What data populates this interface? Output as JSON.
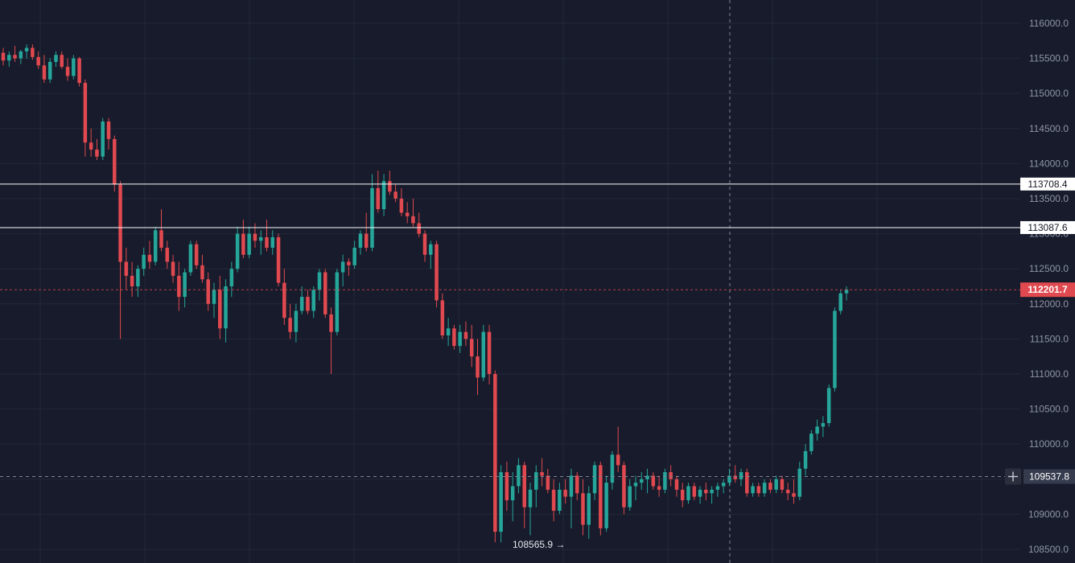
{
  "chart_data": {
    "type": "candlestick",
    "y_axis": {
      "min": 108450,
      "max": 116150,
      "ticks": [
        116000,
        115500,
        115000,
        114500,
        114000,
        113500,
        113000,
        112500,
        112000,
        111500,
        111000,
        110500,
        110000,
        109500,
        109000,
        108500
      ],
      "tick_labels": [
        "116000.0",
        "115500.0",
        "115000.0",
        "114500.0",
        "114000.0",
        "113500.0",
        "113000.0",
        "112500.0",
        "112000.0",
        "111500.0",
        "111000.0",
        "110500.0",
        "110000.0",
        "109500.0",
        "109000.0",
        "108500.0"
      ]
    },
    "horizontal_levels": [
      {
        "value": 113708.4,
        "label": "113708.4"
      },
      {
        "value": 113087.6,
        "label": "113087.6"
      }
    ],
    "last_price": {
      "value": 112201.7,
      "label": "112201.7"
    },
    "crosshair": {
      "price": 109537.8,
      "label": "109537.8"
    },
    "low_marker": {
      "value": 108565.9,
      "label": "108565.9 →"
    },
    "colors": {
      "up": "#26a69a",
      "down": "#e0494f",
      "background": "#171b2b",
      "grid": "#232838",
      "axis_text": "#8f96a8"
    },
    "candles": [
      [
        115580,
        115650,
        115400,
        115470
      ],
      [
        115470,
        115600,
        115380,
        115550
      ],
      [
        115550,
        115680,
        115450,
        115500
      ],
      [
        115500,
        115620,
        115420,
        115600
      ],
      [
        115600,
        115700,
        115500,
        115650
      ],
      [
        115650,
        115700,
        115480,
        115520
      ],
      [
        115520,
        115600,
        115350,
        115400
      ],
      [
        115400,
        115550,
        115150,
        115200
      ],
      [
        115200,
        115500,
        115150,
        115450
      ],
      [
        115450,
        115600,
        115380,
        115550
      ],
      [
        115550,
        115600,
        115350,
        115380
      ],
      [
        115380,
        115500,
        115180,
        115250
      ],
      [
        115250,
        115550,
        115200,
        115500
      ],
      [
        115500,
        115520,
        115100,
        115150
      ],
      [
        115150,
        115200,
        114100,
        114300
      ],
      [
        114300,
        114500,
        114100,
        114200
      ],
      [
        114200,
        114350,
        114050,
        114100
      ],
      [
        114100,
        114650,
        114050,
        114600
      ],
      [
        114600,
        114650,
        114200,
        114350
      ],
      [
        114350,
        114400,
        113600,
        113700
      ],
      [
        113700,
        113750,
        111500,
        112600
      ],
      [
        112600,
        112800,
        112200,
        112400
      ],
      [
        112400,
        112600,
        112100,
        112250
      ],
      [
        112250,
        112550,
        112100,
        112500
      ],
      [
        112500,
        112800,
        112400,
        112700
      ],
      [
        112700,
        112900,
        112500,
        112600
      ],
      [
        112600,
        113100,
        112550,
        113050
      ],
      [
        113050,
        113350,
        112750,
        112800
      ],
      [
        112800,
        112900,
        112500,
        112600
      ],
      [
        112600,
        112700,
        112300,
        112400
      ],
      [
        112400,
        112600,
        111900,
        112100
      ],
      [
        112100,
        112500,
        111950,
        112450
      ],
      [
        112450,
        112900,
        112400,
        112850
      ],
      [
        112850,
        112900,
        112500,
        112550
      ],
      [
        112550,
        112700,
        112300,
        112350
      ],
      [
        112350,
        112450,
        111900,
        112000
      ],
      [
        112000,
        112300,
        111800,
        112200
      ],
      [
        112200,
        112400,
        111500,
        111650
      ],
      [
        111650,
        112350,
        111450,
        112250
      ],
      [
        112250,
        112600,
        112100,
        112500
      ],
      [
        112500,
        113100,
        112450,
        113000
      ],
      [
        113000,
        113200,
        112650,
        112700
      ],
      [
        112700,
        113100,
        112650,
        113000
      ],
      [
        113000,
        113150,
        112800,
        112900
      ],
      [
        112900,
        113050,
        112700,
        112950
      ],
      [
        112950,
        113200,
        112750,
        112800
      ],
      [
        112800,
        113050,
        112700,
        112950
      ],
      [
        112950,
        113000,
        112250,
        112300
      ],
      [
        112300,
        112500,
        111700,
        111800
      ],
      [
        111800,
        112000,
        111500,
        111600
      ],
      [
        111600,
        112000,
        111450,
        111900
      ],
      [
        111900,
        112250,
        111850,
        112100
      ],
      [
        112100,
        112200,
        111850,
        111900
      ],
      [
        111900,
        112250,
        111800,
        112200
      ],
      [
        112200,
        112500,
        112050,
        112450
      ],
      [
        112450,
        112500,
        111800,
        111850
      ],
      [
        111850,
        111950,
        111000,
        111600
      ],
      [
        111600,
        112500,
        111550,
        112450
      ],
      [
        112450,
        112700,
        112250,
        112600
      ],
      [
        112600,
        112650,
        112400,
        112550
      ],
      [
        112550,
        112900,
        112500,
        112800
      ],
      [
        112800,
        113050,
        112700,
        113000
      ],
      [
        113000,
        113300,
        112750,
        112800
      ],
      [
        112800,
        113850,
        112750,
        113650
      ],
      [
        113650,
        113900,
        113300,
        113350
      ],
      [
        113350,
        113850,
        113250,
        113750
      ],
      [
        113750,
        113900,
        113550,
        113600
      ],
      [
        113600,
        113700,
        113450,
        113500
      ],
      [
        113500,
        113650,
        113250,
        113300
      ],
      [
        113300,
        113450,
        113150,
        113250
      ],
      [
        113250,
        113500,
        113100,
        113150
      ],
      [
        113150,
        113300,
        112950,
        113000
      ],
      [
        113000,
        113050,
        112600,
        112700
      ],
      [
        112700,
        112900,
        112500,
        112850
      ],
      [
        112850,
        112900,
        111950,
        112050
      ],
      [
        112050,
        112150,
        111500,
        111550
      ],
      [
        111550,
        111800,
        111400,
        111650
      ],
      [
        111650,
        111700,
        111350,
        111400
      ],
      [
        111400,
        111700,
        111300,
        111600
      ],
      [
        111600,
        111750,
        111400,
        111500
      ],
      [
        111500,
        111700,
        111100,
        111250
      ],
      [
        111250,
        111500,
        110700,
        110950
      ],
      [
        110950,
        111700,
        110900,
        111600
      ],
      [
        111600,
        111700,
        110850,
        111000
      ],
      [
        111000,
        111050,
        108600,
        108750
      ],
      [
        108750,
        109700,
        108600,
        109600
      ],
      [
        109600,
        109750,
        109050,
        109200
      ],
      [
        109200,
        109600,
        108900,
        109400
      ],
      [
        109400,
        109800,
        109300,
        109700
      ],
      [
        109700,
        109750,
        108800,
        109100
      ],
      [
        109100,
        109450,
        108700,
        109350
      ],
      [
        109350,
        109700,
        109100,
        109600
      ],
      [
        109600,
        109800,
        109400,
        109550
      ],
      [
        109550,
        109650,
        109300,
        109350
      ],
      [
        109350,
        109500,
        108900,
        109050
      ],
      [
        109050,
        109450,
        109000,
        109350
      ],
      [
        109350,
        109500,
        109150,
        109250
      ],
      [
        109250,
        109650,
        108800,
        109550
      ],
      [
        109550,
        109600,
        109200,
        109300
      ],
      [
        109300,
        109500,
        108700,
        108850
      ],
      [
        108850,
        109400,
        108650,
        109300
      ],
      [
        109300,
        109750,
        109200,
        109700
      ],
      [
        109700,
        109750,
        108700,
        108800
      ],
      [
        108800,
        109550,
        108750,
        109450
      ],
      [
        109450,
        109900,
        109350,
        109850
      ],
      [
        109850,
        110250,
        109600,
        109700
      ],
      [
        109700,
        109750,
        109000,
        109100
      ],
      [
        109100,
        109500,
        109050,
        109400
      ],
      [
        109400,
        109550,
        109200,
        109450
      ],
      [
        109450,
        109600,
        109350,
        109500
      ],
      [
        109500,
        109650,
        109300,
        109550
      ],
      [
        109550,
        109600,
        109350,
        109400
      ],
      [
        109400,
        109550,
        109250,
        109350
      ],
      [
        109350,
        109650,
        109300,
        109600
      ],
      [
        109600,
        109700,
        109400,
        109500
      ],
      [
        109500,
        109550,
        109250,
        109350
      ],
      [
        109350,
        109450,
        109100,
        109200
      ],
      [
        109200,
        109450,
        109150,
        109400
      ],
      [
        109400,
        109450,
        109200,
        109250
      ],
      [
        109250,
        109400,
        109150,
        109350
      ],
      [
        109350,
        109450,
        109200,
        109300
      ],
      [
        109300,
        109400,
        109150,
        109350
      ],
      [
        109350,
        109450,
        109250,
        109400
      ],
      [
        109400,
        109500,
        109300,
        109450
      ],
      [
        109450,
        109650,
        109400,
        109550
      ],
      [
        109550,
        109700,
        109450,
        109500
      ],
      [
        109500,
        109650,
        109400,
        109600
      ],
      [
        109600,
        109650,
        109250,
        109300
      ],
      [
        109300,
        109450,
        109250,
        109400
      ],
      [
        109400,
        109450,
        109250,
        109300
      ],
      [
        109300,
        109500,
        109250,
        109450
      ],
      [
        109450,
        109500,
        109300,
        109350
      ],
      [
        109350,
        109550,
        109300,
        109500
      ],
      [
        109500,
        109550,
        109300,
        109350
      ],
      [
        109350,
        109450,
        109200,
        109300
      ],
      [
        109300,
        109500,
        109150,
        109250
      ],
      [
        109250,
        109750,
        109200,
        109650
      ],
      [
        109650,
        110000,
        109550,
        109900
      ],
      [
        109900,
        110200,
        109850,
        110150
      ],
      [
        110150,
        110350,
        110050,
        110250
      ],
      [
        110250,
        110400,
        110100,
        110300
      ],
      [
        110300,
        110850,
        110250,
        110800
      ],
      [
        110800,
        111950,
        110750,
        111900
      ],
      [
        111900,
        112200,
        111850,
        112150
      ],
      [
        112150,
        112250,
        112050,
        112201.7
      ]
    ]
  }
}
